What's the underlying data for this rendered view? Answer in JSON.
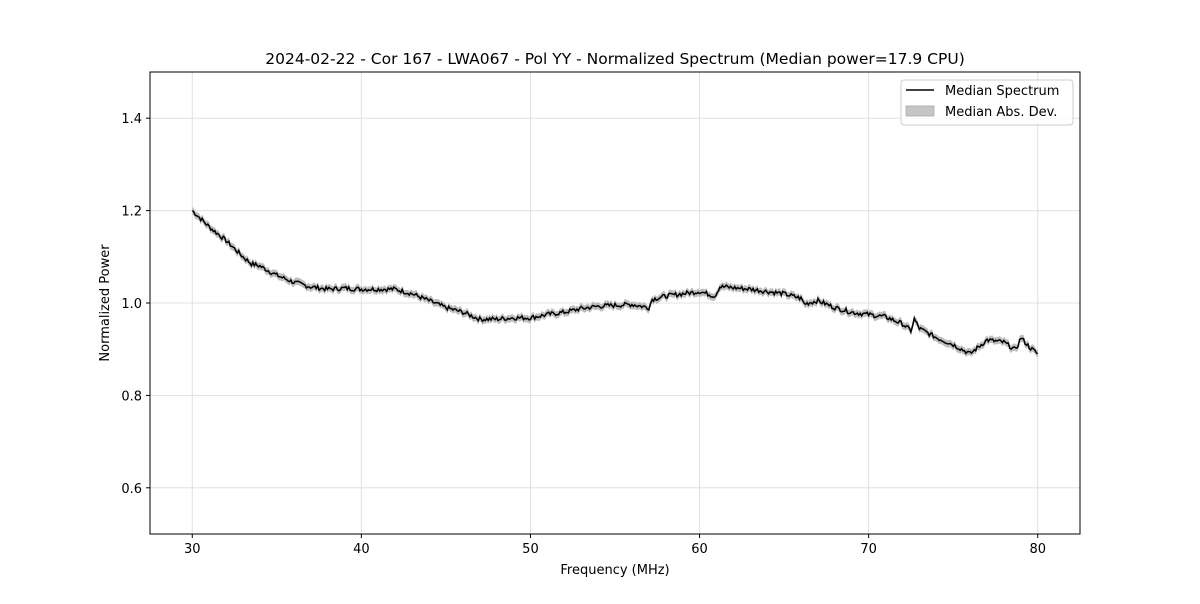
{
  "chart_data": {
    "type": "line",
    "title": "2024-02-22 - Cor 167 - LWA067 - Pol YY - Normalized Spectrum (Median power=17.9 CPU)",
    "xlabel": "Frequency (MHz)",
    "ylabel": "Normalized Power",
    "xlim": [
      27.5,
      82.5
    ],
    "ylim": [
      0.5,
      1.5
    ],
    "xticks": [
      30,
      40,
      50,
      60,
      70,
      80
    ],
    "yticks": [
      0.6,
      0.8,
      1.0,
      1.2,
      1.4
    ],
    "grid": true,
    "legend": {
      "placement": "top-right",
      "entries": [
        "Median Spectrum",
        "Median Abs. Dev."
      ]
    },
    "colors": {
      "line": "#000000",
      "band": "#bdbdbd",
      "grid": "#e0e0e0"
    },
    "series": [
      {
        "name": "Median Spectrum",
        "mad": 0.008,
        "x": [
          30,
          31,
          32,
          33,
          33.5,
          34,
          35,
          36,
          37,
          38,
          39,
          40,
          41,
          42,
          43,
          44,
          45,
          46,
          47,
          48,
          49,
          50,
          51,
          52,
          53,
          54,
          55,
          56,
          57,
          57.2,
          58,
          59,
          60,
          60.9,
          61.2,
          61.5,
          62,
          63,
          64,
          65,
          66,
          66.2,
          67,
          68,
          69,
          70,
          71,
          72,
          72.5,
          72.7,
          73,
          74,
          75,
          76,
          76.5,
          77,
          78,
          78.7,
          79,
          79.5,
          80
        ],
        "y": [
          1.2,
          1.165,
          1.135,
          1.1,
          1.085,
          1.08,
          1.06,
          1.045,
          1.035,
          1.03,
          1.032,
          1.03,
          1.03,
          1.03,
          1.02,
          1.005,
          0.99,
          0.98,
          0.965,
          0.965,
          0.968,
          0.968,
          0.975,
          0.98,
          0.988,
          0.993,
          0.995,
          0.997,
          0.99,
          1.008,
          1.015,
          1.02,
          1.025,
          1.015,
          1.035,
          1.035,
          1.033,
          1.03,
          1.025,
          1.02,
          1.01,
          0.998,
          1.005,
          0.99,
          0.98,
          0.975,
          0.97,
          0.955,
          0.94,
          0.965,
          0.945,
          0.925,
          0.91,
          0.89,
          0.905,
          0.92,
          0.915,
          0.898,
          0.925,
          0.905,
          0.89
        ]
      }
    ]
  }
}
